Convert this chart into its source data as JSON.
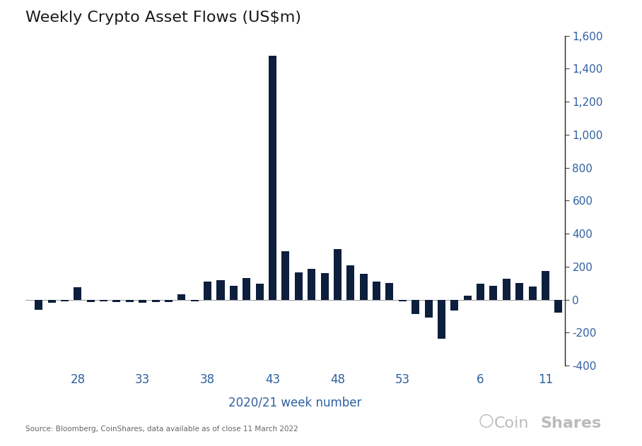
{
  "title": "Weekly Crypto Asset Flows (US$m)",
  "xlabel": "2020/21 week number",
  "source": "Source: Bloomberg, CoinShares, data available as of close 11 March 2022",
  "coinshares_text": "Coin",
  "coinshares_text2": "Shares",
  "bar_color": "#0d1f3c",
  "title_color": "#1a1a1a",
  "axis_label_color": "#3060a0",
  "ytick_color": "#3060a0",
  "xtick_color": "#3060a0",
  "coinshares_color": "#bbbbbb",
  "background_color": "#ffffff",
  "ylim": [
    -400,
    1600
  ],
  "yticks": [
    -400,
    -200,
    0,
    200,
    400,
    600,
    800,
    1000,
    1200,
    1400,
    1600
  ],
  "xtick_labels": [
    "28",
    "33",
    "38",
    "43",
    "48",
    "53",
    "6",
    "11"
  ],
  "week_numbers": [
    25,
    26,
    27,
    28,
    29,
    30,
    31,
    32,
    33,
    34,
    35,
    36,
    37,
    38,
    39,
    40,
    41,
    42,
    43,
    44,
    45,
    46,
    47,
    48,
    49,
    50,
    51,
    52,
    53,
    1,
    2,
    3,
    4,
    5,
    6,
    7,
    8,
    9,
    10,
    11,
    12
  ],
  "values": [
    -60,
    -20,
    -10,
    75,
    -15,
    -10,
    -15,
    -15,
    -20,
    -15,
    -15,
    35,
    -10,
    110,
    120,
    85,
    130,
    95,
    1480,
    295,
    165,
    185,
    160,
    305,
    210,
    155,
    110,
    100,
    -10,
    -85,
    -110,
    -235,
    -65,
    25,
    95,
    85,
    125,
    100,
    80,
    175,
    -80
  ],
  "xtick_positions": [
    28,
    33,
    38,
    43,
    48,
    53,
    6,
    11
  ]
}
